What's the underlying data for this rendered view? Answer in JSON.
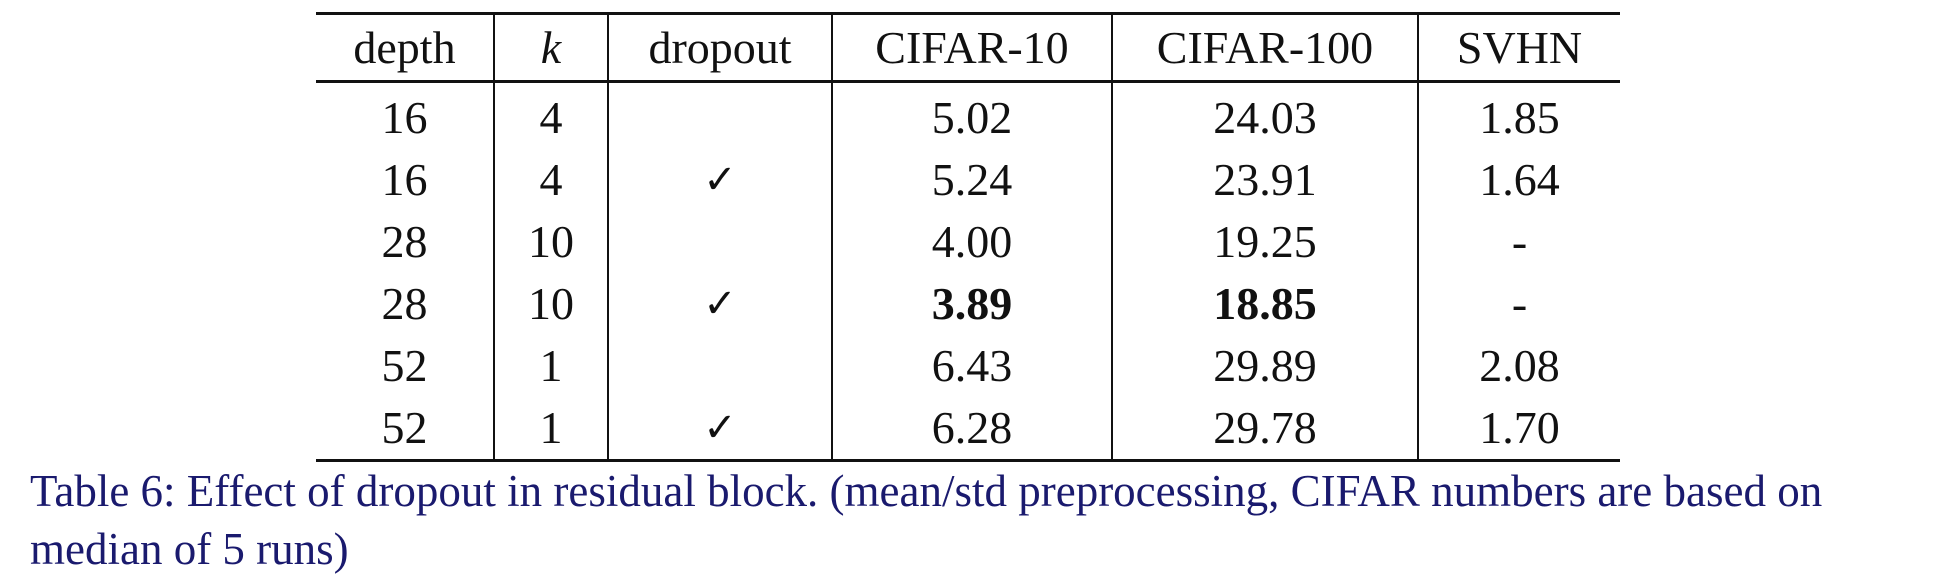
{
  "table": {
    "headers": [
      "depth",
      "k",
      "dropout",
      "CIFAR-10",
      "CIFAR-100",
      "SVHN"
    ],
    "rows": [
      {
        "depth": "16",
        "k": "4",
        "dropout": "",
        "cifar10": "5.02",
        "cifar100": "24.03",
        "svhn": "1.85"
      },
      {
        "depth": "16",
        "k": "4",
        "dropout": "✓",
        "cifar10": "5.24",
        "cifar100": "23.91",
        "svhn": "1.64"
      },
      {
        "depth": "28",
        "k": "10",
        "dropout": "",
        "cifar10": "4.00",
        "cifar100": "19.25",
        "svhn": "-"
      },
      {
        "depth": "28",
        "k": "10",
        "dropout": "✓",
        "cifar10": "3.89",
        "cifar100": "18.85",
        "svhn": "-"
      },
      {
        "depth": "52",
        "k": "1",
        "dropout": "",
        "cifar10": "6.43",
        "cifar100": "29.89",
        "svhn": "2.08"
      },
      {
        "depth": "52",
        "k": "1",
        "dropout": "✓",
        "cifar10": "6.28",
        "cifar100": "29.78",
        "svhn": "1.70"
      }
    ]
  },
  "caption": "Table 6: Effect of dropout in residual block. (mean/std preprocessing, CIFAR numbers are based on median of 5 runs)"
}
